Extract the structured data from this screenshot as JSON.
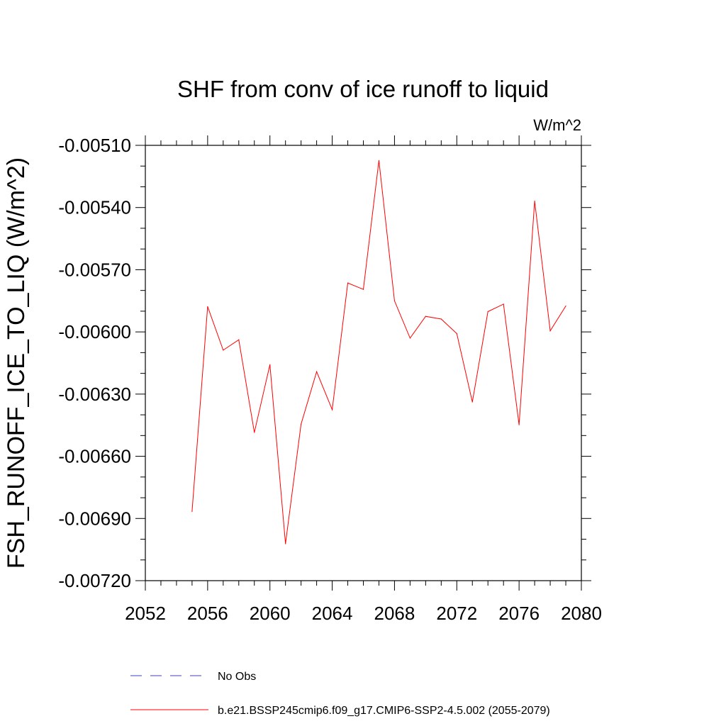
{
  "chart_data": {
    "type": "line",
    "title": "SHF from conv of ice runoff to liquid",
    "units": "W/m^2",
    "xlabel": "",
    "ylabel": "FSH_RUNOFF_ICE_TO_LIQ  (W/m^2)",
    "xlim": [
      2052,
      2080
    ],
    "ylim": [
      -0.0072,
      -0.0051
    ],
    "x_ticks": [
      2052,
      2056,
      2060,
      2064,
      2068,
      2072,
      2076,
      2080
    ],
    "x_tick_labels": [
      "2052",
      "2056",
      "2060",
      "2064",
      "2068",
      "2072",
      "2076",
      "2080"
    ],
    "y_ticks": [
      -0.0051,
      -0.0054,
      -0.0057,
      -0.006,
      -0.0063,
      -0.0066,
      -0.0069,
      -0.0072
    ],
    "y_tick_labels": [
      "-0.00510",
      "-0.00540",
      "-0.00570",
      "-0.00600",
      "-0.00630",
      "-0.00660",
      "-0.00690",
      "-0.00720"
    ],
    "series": [
      {
        "name": "b.e21.BSSP245cmip6.f09_g17.CMIP6-SSP2-4.5.002 (2055-2079)",
        "color": "#ff0000",
        "dash": "solid",
        "x": [
          2055,
          2056,
          2057,
          2058,
          2059,
          2060,
          2061,
          2062,
          2063,
          2064,
          2065,
          2066,
          2067,
          2068,
          2069,
          2070,
          2071,
          2072,
          2073,
          2074,
          2075,
          2076,
          2077,
          2078,
          2079
        ],
        "y": [
          -0.006866,
          -0.005878,
          -0.006088,
          -0.006038,
          -0.006485,
          -0.006158,
          -0.007022,
          -0.006445,
          -0.006192,
          -0.006375,
          -0.005764,
          -0.005795,
          -0.005173,
          -0.00585,
          -0.00603,
          -0.005925,
          -0.005938,
          -0.006008,
          -0.006338,
          -0.005902,
          -0.005866,
          -0.006448,
          -0.005369,
          -0.005995,
          -0.005875
        ]
      }
    ],
    "legend": [
      {
        "label": "No Obs",
        "color": "#4040c0",
        "dash": "dashed"
      },
      {
        "label": "b.e21.BSSP245cmip6.f09_g17.CMIP6-SSP2-4.5.002 (2055-2079)",
        "color": "#ff0000",
        "dash": "solid"
      }
    ]
  }
}
